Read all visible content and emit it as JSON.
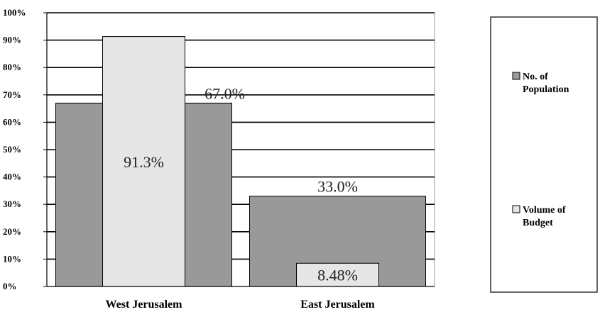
{
  "chart_data": {
    "type": "bar",
    "categories": [
      "West Jerusalem",
      "East Jerusalem"
    ],
    "series": [
      {
        "name": "No. of Population",
        "values": [
          67.0,
          33.0
        ],
        "labels": [
          "67.0%",
          "33.0%"
        ],
        "color": "#999999"
      },
      {
        "name": "Volume of Budget",
        "values": [
          91.3,
          8.48
        ],
        "labels": [
          "91.3%",
          "8.48%"
        ],
        "color": "#e6e6e6"
      }
    ],
    "ylim": [
      0,
      100
    ],
    "yticks": [
      "0%",
      "10%",
      "20%",
      "30%",
      "40%",
      "50%",
      "60%",
      "70%",
      "80%",
      "90%",
      "100%"
    ],
    "grid": true,
    "legend_position": "right",
    "legend": [
      {
        "lines": [
          "No. of",
          "Population"
        ],
        "color": "#999999"
      },
      {
        "lines": [
          "Volume of",
          "Budget"
        ],
        "color": "#e6e6e6"
      }
    ]
  }
}
